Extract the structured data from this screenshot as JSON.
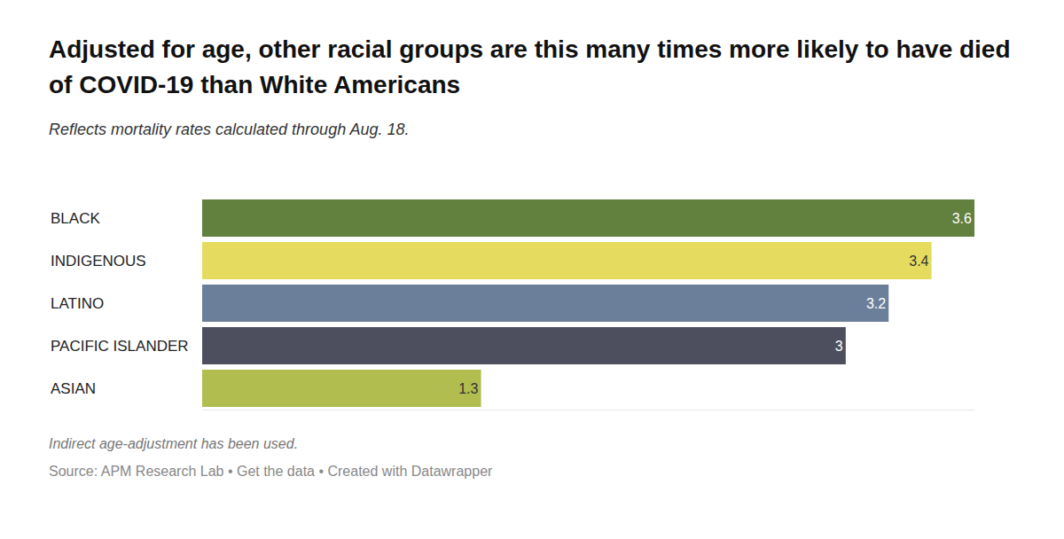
{
  "chart_data": {
    "type": "bar",
    "orientation": "horizontal",
    "title": "Adjusted for age, other racial groups are this many times more likely to have died of COVID-19 than White Americans",
    "subtitle": "Reflects mortality rates calculated through Aug. 18.",
    "note": "Indirect age-adjustment has been used.",
    "source": "Source: APM Research Lab • Get the data • Created with Datawrapper",
    "categories": [
      "BLACK",
      "INDIGENOUS",
      "LATINO",
      "PACIFIC ISLANDER",
      "ASIAN"
    ],
    "values": [
      3.6,
      3.4,
      3.2,
      3,
      1.3
    ],
    "colors": [
      "#62803e",
      "#e5dc5f",
      "#6b7f9a",
      "#4d4f5e",
      "#b1bd4e"
    ],
    "xlim": [
      0,
      3.6
    ],
    "xticks": [],
    "data_labels": true,
    "tick_labels": "y",
    "grid": false
  }
}
